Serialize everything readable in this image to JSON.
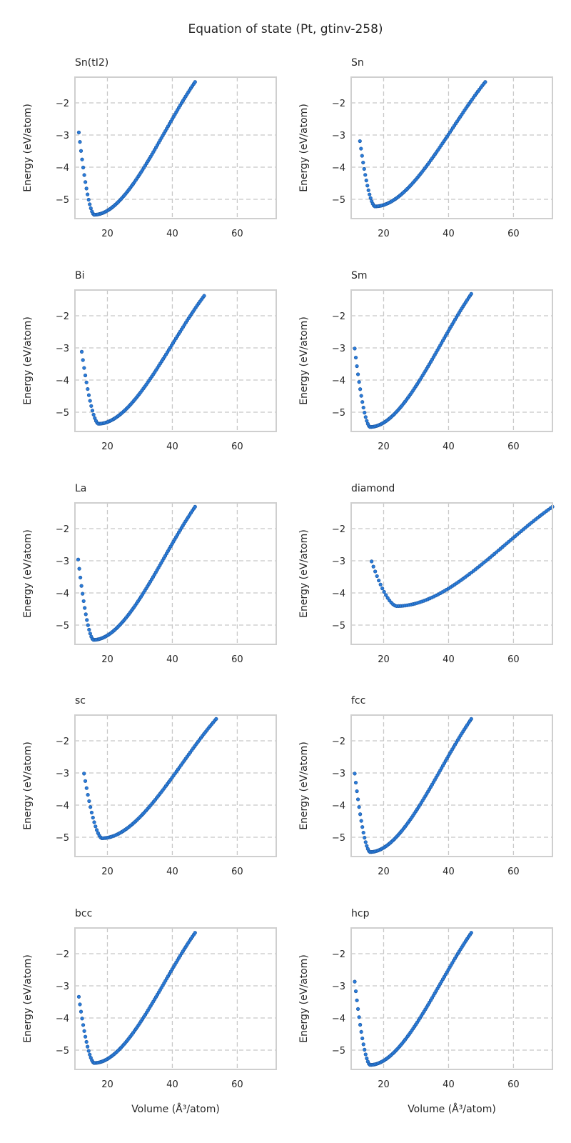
{
  "figure": {
    "title": "Equation of state (Pt, gtinv-258)",
    "xlabel": "Volume (Å³/atom)",
    "ylabel": "Energy (eV/atom)"
  },
  "chart_data": [
    {
      "type": "scatter",
      "title": "Sn(tI2)",
      "xlabel": "",
      "ylabel": "Energy (eV/atom)",
      "xlim": [
        10,
        72
      ],
      "ylim": [
        -5.6,
        -1.2
      ],
      "xticks": [
        20,
        40,
        60
      ],
      "yticks": [
        -2,
        -3,
        -4,
        -5
      ],
      "grid": true,
      "v0": 15.9,
      "e0": -5.48,
      "vmin": 11.2,
      "vmax": 47.0,
      "emin_vol": -2.92,
      "emax_vol": -1.35,
      "n": 90
    },
    {
      "type": "scatter",
      "title": "Sn",
      "xlabel": "",
      "ylabel": "Energy (eV/atom)",
      "xlim": [
        10,
        72
      ],
      "ylim": [
        -5.6,
        -1.2
      ],
      "xticks": [
        20,
        40,
        60
      ],
      "yticks": [
        -2,
        -3,
        -4,
        -5
      ],
      "grid": true,
      "v0": 17.3,
      "e0": -5.22,
      "vmin": 12.7,
      "vmax": 51.3,
      "emin_vol": -3.19,
      "emax_vol": -1.35,
      "n": 90
    },
    {
      "type": "scatter",
      "title": "Bi",
      "xlabel": "",
      "ylabel": "Energy (eV/atom)",
      "xlim": [
        10,
        72
      ],
      "ylim": [
        -5.6,
        -1.2
      ],
      "xticks": [
        20,
        40,
        60
      ],
      "yticks": [
        -2,
        -3,
        -4,
        -5
      ],
      "grid": true,
      "v0": 17.2,
      "e0": -5.36,
      "vmin": 12.1,
      "vmax": 49.8,
      "emin_vol": -3.12,
      "emax_vol": -1.38,
      "n": 90
    },
    {
      "type": "scatter",
      "title": "Sm",
      "xlabel": "",
      "ylabel": "Energy (eV/atom)",
      "xlim": [
        10,
        72
      ],
      "ylim": [
        -5.6,
        -1.2
      ],
      "xticks": [
        20,
        40,
        60
      ],
      "yticks": [
        -2,
        -3,
        -4,
        -5
      ],
      "grid": true,
      "v0": 15.8,
      "e0": -5.46,
      "vmin": 11.1,
      "vmax": 47.0,
      "emin_vol": -3.02,
      "emax_vol": -1.32,
      "n": 90
    },
    {
      "type": "scatter",
      "title": "La",
      "xlabel": "",
      "ylabel": "Energy (eV/atom)",
      "xlim": [
        10,
        72
      ],
      "ylim": [
        -5.6,
        -1.2
      ],
      "xticks": [
        20,
        40,
        60
      ],
      "yticks": [
        -2,
        -3,
        -4,
        -5
      ],
      "grid": true,
      "v0": 15.7,
      "e0": -5.46,
      "vmin": 11.0,
      "vmax": 47.0,
      "emin_vol": -2.96,
      "emax_vol": -1.32,
      "n": 90
    },
    {
      "type": "scatter",
      "title": "diamond",
      "xlabel": "",
      "ylabel": "Energy (eV/atom)",
      "xlim": [
        10,
        72
      ],
      "ylim": [
        -5.6,
        -1.2
      ],
      "xticks": [
        20,
        40,
        60
      ],
      "yticks": [
        -2,
        -3,
        -4,
        -5
      ],
      "grid": true,
      "v0": 24.0,
      "e0": -4.41,
      "vmin": 16.3,
      "vmax": 72.0,
      "emin_vol": -3.02,
      "emax_vol": -1.32,
      "n": 90
    },
    {
      "type": "scatter",
      "title": "sc",
      "xlabel": "",
      "ylabel": "Energy (eV/atom)",
      "xlim": [
        10,
        72
      ],
      "ylim": [
        -5.6,
        -1.2
      ],
      "xticks": [
        20,
        40,
        60
      ],
      "yticks": [
        -2,
        -3,
        -4,
        -5
      ],
      "grid": true,
      "v0": 18.3,
      "e0": -5.03,
      "vmin": 12.8,
      "vmax": 53.5,
      "emin_vol": -3.02,
      "emax_vol": -1.32,
      "n": 90
    },
    {
      "type": "scatter",
      "title": "fcc",
      "xlabel": "",
      "ylabel": "Energy (eV/atom)",
      "xlim": [
        10,
        72
      ],
      "ylim": [
        -5.6,
        -1.2
      ],
      "xticks": [
        20,
        40,
        60
      ],
      "yticks": [
        -2,
        -3,
        -4,
        -5
      ],
      "grid": true,
      "v0": 15.8,
      "e0": -5.46,
      "vmin": 11.1,
      "vmax": 47.0,
      "emin_vol": -3.02,
      "emax_vol": -1.32,
      "n": 90
    },
    {
      "type": "scatter",
      "title": "bcc",
      "xlabel": "Volume (Å³/atom)",
      "ylabel": "Energy (eV/atom)",
      "xlim": [
        10,
        72
      ],
      "ylim": [
        -5.6,
        -1.2
      ],
      "xticks": [
        20,
        40,
        60
      ],
      "yticks": [
        -2,
        -3,
        -4,
        -5
      ],
      "grid": true,
      "v0": 15.9,
      "e0": -5.4,
      "vmin": 11.2,
      "vmax": 47.0,
      "emin_vol": -3.34,
      "emax_vol": -1.35,
      "n": 90
    },
    {
      "type": "scatter",
      "title": "hcp",
      "xlabel": "Volume (Å³/atom)",
      "ylabel": "Energy (eV/atom)",
      "xlim": [
        10,
        72
      ],
      "ylim": [
        -5.6,
        -1.2
      ],
      "xticks": [
        20,
        40,
        60
      ],
      "yticks": [
        -2,
        -3,
        -4,
        -5
      ],
      "grid": true,
      "v0": 15.8,
      "e0": -5.46,
      "vmin": 11.1,
      "vmax": 47.0,
      "emin_vol": -2.87,
      "emax_vol": -1.35,
      "n": 90
    }
  ]
}
